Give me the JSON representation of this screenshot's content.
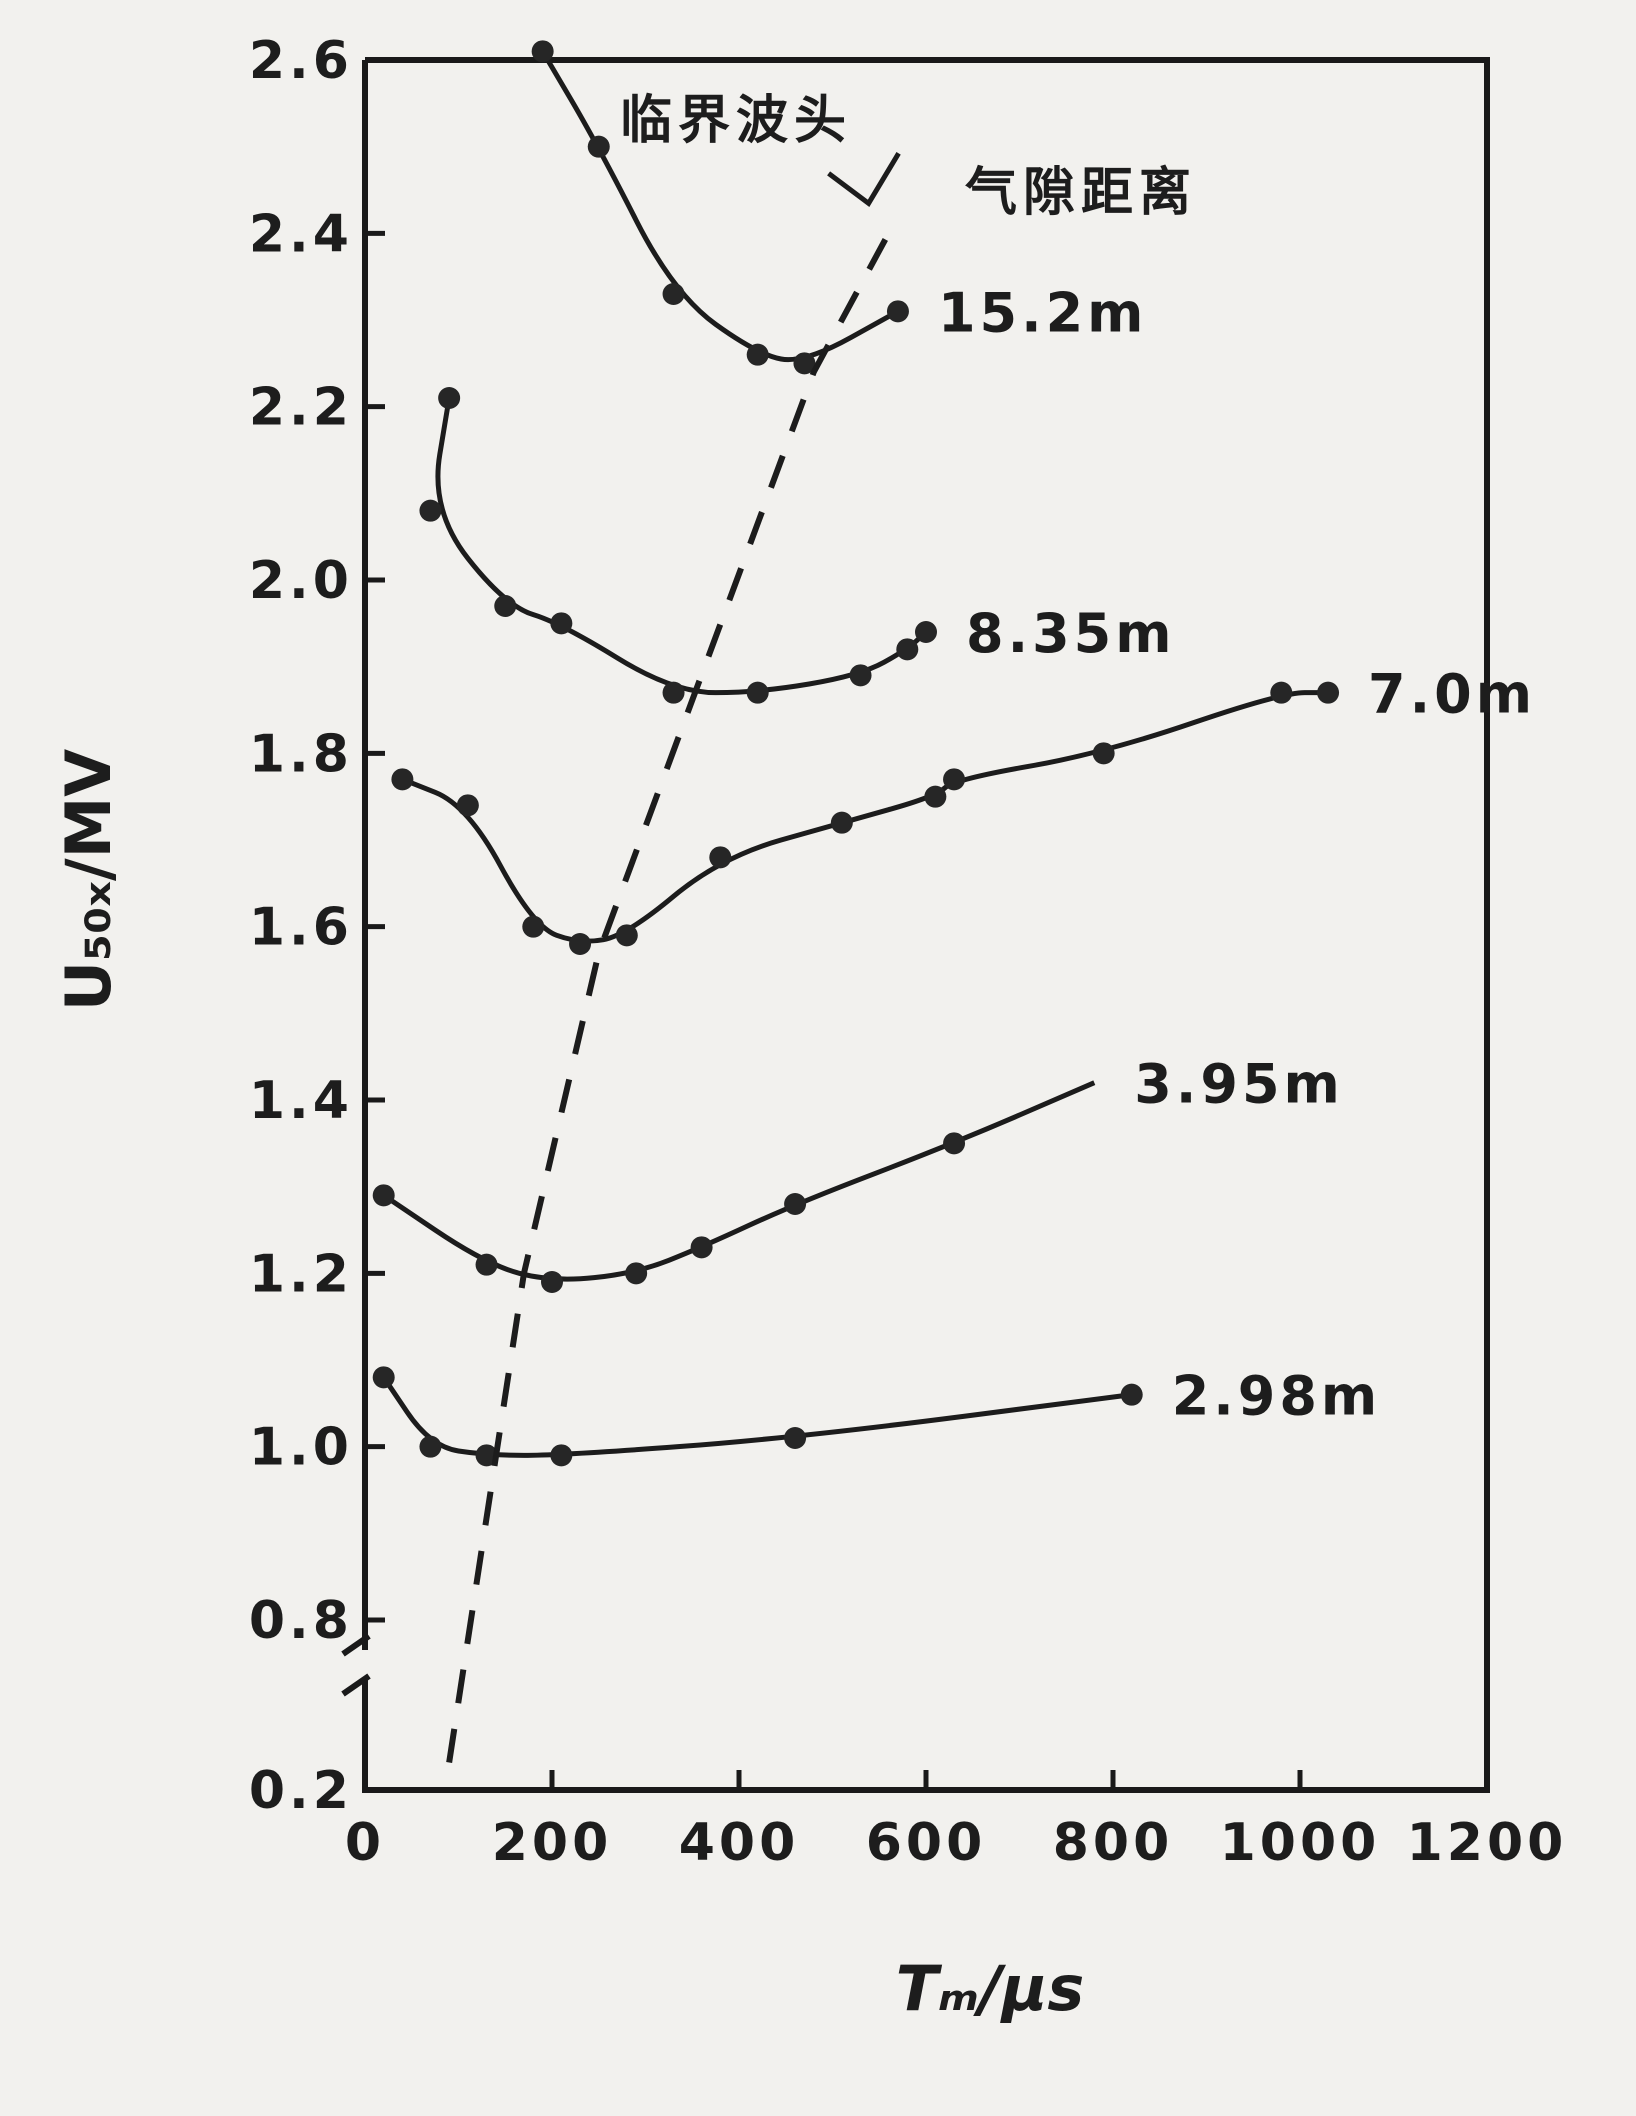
{
  "chart_data": {
    "type": "line",
    "xlabel": "Tₘ/μs",
    "ylabel": "U₅₀ₓ/MV",
    "xlim": [
      0,
      1200
    ],
    "ylim": [
      0.2,
      2.6
    ],
    "x_ticks": [
      "0",
      "200",
      "400",
      "600",
      "800",
      "1000",
      "1200"
    ],
    "y_ticks": [
      {
        "value": 2.6,
        "label": "2.6"
      },
      {
        "value": 2.4,
        "label": "2.4"
      },
      {
        "value": 2.2,
        "label": "2.2"
      },
      {
        "value": 2.0,
        "label": "2.0"
      },
      {
        "value": 1.8,
        "label": "1.8"
      },
      {
        "value": 1.6,
        "label": "1.6"
      },
      {
        "value": 1.4,
        "label": "1.4"
      },
      {
        "value": 1.2,
        "label": "1.2"
      },
      {
        "value": 1.0,
        "label": "1.0"
      },
      {
        "value": 0.8,
        "label": "0.8"
      },
      {
        "value": 0.2,
        "label": "0.2"
      }
    ],
    "axis_break": "between 0.2 and 0.8",
    "grid": false,
    "series": [
      {
        "name": "15.2m",
        "points": [
          [
            190,
            2.61
          ],
          [
            250,
            2.5
          ],
          [
            330,
            2.33
          ],
          [
            420,
            2.26
          ],
          [
            470,
            2.25
          ],
          [
            570,
            2.31
          ]
        ]
      },
      {
        "name": "8.35m",
        "points": [
          [
            90,
            2.21
          ],
          [
            70,
            2.08
          ],
          [
            150,
            1.97
          ],
          [
            210,
            1.95
          ],
          [
            330,
            1.87
          ],
          [
            420,
            1.87
          ],
          [
            530,
            1.89
          ],
          [
            580,
            1.92
          ],
          [
            600,
            1.94
          ]
        ]
      },
      {
        "name": "7.0m",
        "points": [
          [
            40,
            1.77
          ],
          [
            110,
            1.74
          ],
          [
            180,
            1.6
          ],
          [
            230,
            1.58
          ],
          [
            280,
            1.59
          ],
          [
            380,
            1.68
          ],
          [
            510,
            1.72
          ],
          [
            610,
            1.75
          ],
          [
            630,
            1.77
          ],
          [
            790,
            1.8
          ],
          [
            980,
            1.87
          ],
          [
            1030,
            1.87
          ]
        ]
      },
      {
        "name": "3.95m",
        "points": [
          [
            20,
            1.29
          ],
          [
            130,
            1.21
          ],
          [
            200,
            1.19
          ],
          [
            290,
            1.2
          ],
          [
            360,
            1.23
          ],
          [
            460,
            1.28
          ],
          [
            630,
            1.35
          ],
          [
            780,
            1.42
          ]
        ]
      },
      {
        "name": "2.98m",
        "points": [
          [
            20,
            1.08
          ],
          [
            70,
            1.0
          ],
          [
            130,
            0.99
          ],
          [
            210,
            0.99
          ],
          [
            460,
            1.01
          ],
          [
            820,
            1.06
          ]
        ]
      }
    ],
    "critical_line": {
      "points": [
        [
          90,
          0.35
        ],
        [
          170,
          1.2
        ],
        [
          250,
          1.57
        ],
        [
          480,
          2.24
        ],
        [
          560,
          2.4
        ]
      ],
      "labels": [
        "临界波头",
        "气隙距离"
      ]
    }
  }
}
